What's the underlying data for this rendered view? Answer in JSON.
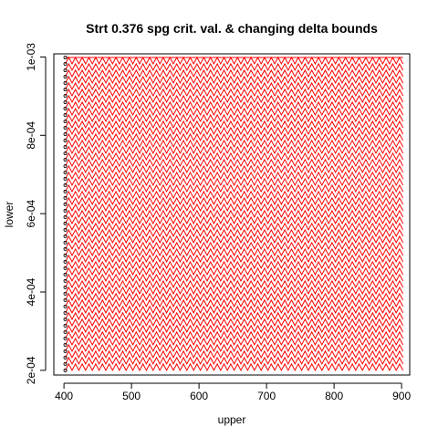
{
  "chart_data": {
    "type": "line",
    "title": "Strt 0.376 spg crit. val. & changing delta bounds",
    "xlabel": "upper",
    "ylabel": "lower",
    "xlim": [
      385,
      912
    ],
    "ylim": [
      0.000188,
      0.001008
    ],
    "x_ticks": [
      400,
      500,
      600,
      700,
      800,
      900
    ],
    "x_tick_labels": [
      "400",
      "500",
      "600",
      "700",
      "800",
      "900"
    ],
    "y_ticks": [
      0.0002,
      0.0004,
      0.0006,
      0.0008,
      0.001
    ],
    "y_tick_labels": [
      "2e-04",
      "4e-04",
      "6e-04",
      "8e-04",
      "1e-03"
    ],
    "grid": false,
    "series": [
      {
        "style": "open circle points",
        "color": "#000000",
        "x": 402,
        "y_start": 0.0002,
        "y_end": 0.001,
        "y_step": 1.63e-05
      },
      {
        "style": "zigzag lines",
        "color": "#ff0000",
        "x_start": 402,
        "x_end": 902,
        "x_step": 10,
        "y_start": 0.0002,
        "y_end": 0.001,
        "y_step": 1.63e-05
      }
    ]
  }
}
